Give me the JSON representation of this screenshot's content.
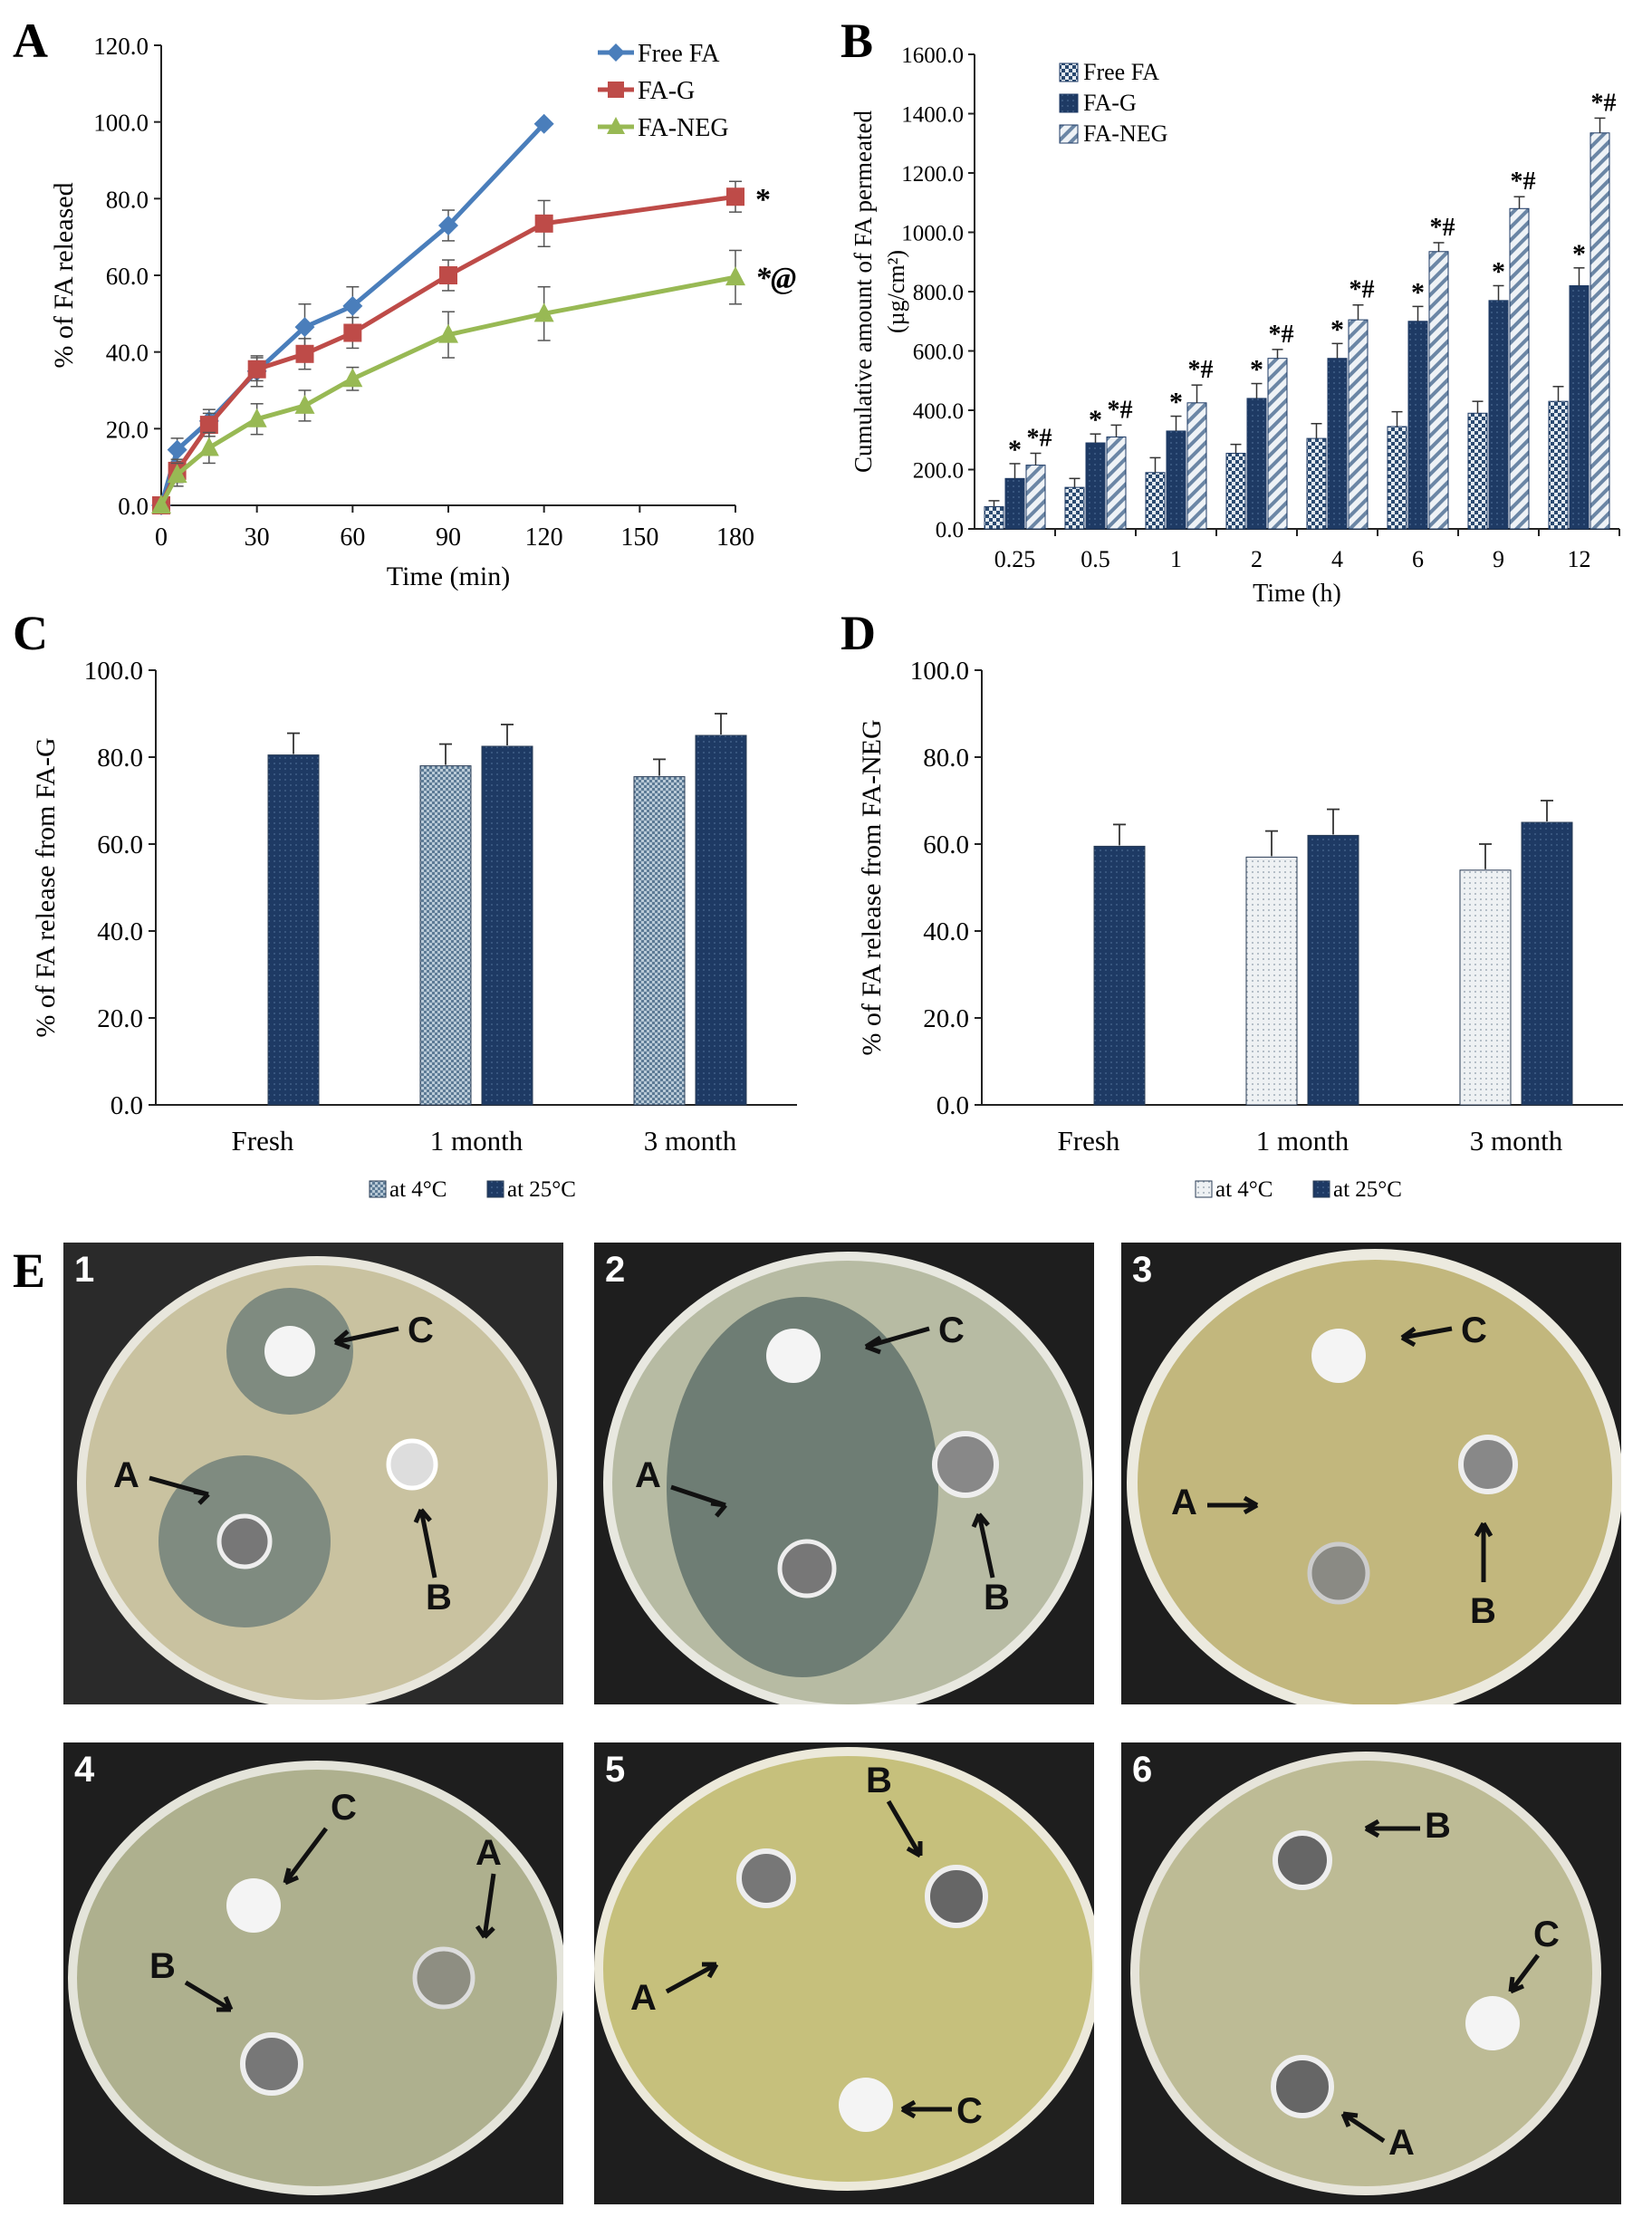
{
  "panels": {
    "A": "A",
    "B": "B",
    "C": "C",
    "D": "D",
    "E": "E"
  },
  "chart_data": [
    {
      "id": "A",
      "type": "line",
      "title": "",
      "xlabel": "Time (min)",
      "ylabel": "% of FA released",
      "xlim": [
        0,
        180
      ],
      "ylim": [
        0,
        120
      ],
      "xticks": [
        "0",
        "30",
        "60",
        "90",
        "120",
        "150",
        "180"
      ],
      "xtick_values": [
        0,
        30,
        60,
        90,
        120,
        150,
        180
      ],
      "yticks": [
        "0.0",
        "20.0",
        "40.0",
        "60.0",
        "80.0",
        "100.0",
        "120.0"
      ],
      "ytick_values": [
        0,
        20,
        40,
        60,
        80,
        100,
        120
      ],
      "legend": "top-right",
      "series": [
        {
          "name": "Free FA",
          "color": "#4a7ebb",
          "marker": "diamond",
          "x": [
            0,
            5,
            15,
            30,
            45,
            60,
            90,
            120
          ],
          "y": [
            0,
            14.5,
            22,
            35,
            46.5,
            52,
            73,
            99.5
          ],
          "err": [
            0,
            3,
            3,
            4,
            6,
            5,
            4,
            0
          ]
        },
        {
          "name": "FA-G",
          "color": "#be4b48",
          "marker": "square",
          "x": [
            0,
            5,
            15,
            30,
            45,
            60,
            90,
            120,
            180
          ],
          "y": [
            0,
            9,
            21,
            35.5,
            39.5,
            45,
            60,
            73.5,
            80.5
          ],
          "err": [
            0,
            3,
            3,
            3,
            4,
            4,
            4,
            6,
            4
          ]
        },
        {
          "name": "FA-NEG",
          "color": "#98b954",
          "marker": "triangle",
          "x": [
            0,
            5,
            15,
            30,
            45,
            60,
            90,
            120,
            180
          ],
          "y": [
            0,
            8,
            15,
            22.5,
            26,
            33,
            44.5,
            50,
            59.5
          ],
          "err": [
            0,
            3,
            4,
            4,
            4,
            3,
            6,
            7,
            7
          ]
        }
      ],
      "annotations": [
        "*",
        "*@"
      ]
    },
    {
      "id": "B",
      "type": "bar",
      "title": "",
      "xlabel": "Time (h)",
      "ylabel": "Cumulative amount of FA permeated",
      "ylabel_unit": "(µg/cm²)",
      "ylim": [
        0,
        1600
      ],
      "yticks": [
        "0.0",
        "200.0",
        "400.0",
        "600.0",
        "800.0",
        "1000.0",
        "1200.0",
        "1400.0",
        "1600.0"
      ],
      "ytick_values": [
        0,
        200,
        400,
        600,
        800,
        1000,
        1200,
        1400,
        1600
      ],
      "categories": [
        "0.25",
        "0.5",
        "1",
        "2",
        "4",
        "6",
        "9",
        "12"
      ],
      "legend": "top-left",
      "series": [
        {
          "name": "Free FA",
          "color": "#c8d3dd",
          "pattern": "check",
          "values": [
            75,
            140,
            190,
            255,
            305,
            345,
            390,
            430
          ],
          "err": [
            20,
            30,
            50,
            30,
            50,
            50,
            40,
            50
          ]
        },
        {
          "name": "FA-G",
          "color": "#1f3b63",
          "pattern": "solid",
          "values": [
            170,
            290,
            330,
            440,
            575,
            700,
            770,
            820
          ],
          "err": [
            50,
            30,
            50,
            50,
            50,
            50,
            50,
            60
          ]
        },
        {
          "name": "FA-NEG",
          "color": "#9fb3c8",
          "pattern": "diagonal",
          "values": [
            215,
            310,
            425,
            575,
            705,
            935,
            1080,
            1335
          ],
          "err": [
            40,
            40,
            60,
            30,
            50,
            30,
            40,
            50
          ]
        }
      ],
      "markers": {
        "fa_g": "*",
        "fa_neg": "*#"
      }
    },
    {
      "id": "C",
      "type": "bar",
      "title": "",
      "xlabel": "",
      "ylabel": "% of FA release from FA-G",
      "ylim": [
        0,
        100
      ],
      "yticks": [
        "0.0",
        "20.0",
        "40.0",
        "60.0",
        "80.0",
        "100.0"
      ],
      "ytick_values": [
        0,
        20,
        40,
        60,
        80,
        100
      ],
      "categories": [
        "Fresh",
        "1 month",
        "3 month"
      ],
      "legend": "bottom",
      "series": [
        {
          "name": "at 4°C",
          "color": "#a9bccb",
          "pattern": "check",
          "values": [
            null,
            78,
            75.5
          ],
          "err": [
            0,
            5,
            4
          ]
        },
        {
          "name": "at 25°C",
          "color": "#1e3a64",
          "pattern": "solid",
          "values": [
            80.5,
            82.5,
            85
          ],
          "err": [
            5,
            5,
            5
          ]
        }
      ]
    },
    {
      "id": "D",
      "type": "bar",
      "title": "",
      "xlabel": "",
      "ylabel": "% of FA release from FA-NEG",
      "ylim": [
        0,
        100
      ],
      "yticks": [
        "0.0",
        "20.0",
        "40.0",
        "60.0",
        "80.0",
        "100.0"
      ],
      "ytick_values": [
        0,
        20,
        40,
        60,
        80,
        100
      ],
      "categories": [
        "Fresh",
        "1 month",
        "3 month"
      ],
      "legend": "bottom",
      "series": [
        {
          "name": "at 4°C",
          "color": "#e3e8ec",
          "pattern": "dots",
          "values": [
            null,
            57,
            54
          ],
          "err": [
            0,
            6,
            6
          ]
        },
        {
          "name": "at 25°C",
          "color": "#1e3a64",
          "pattern": "solid",
          "values": [
            59.5,
            62,
            65
          ],
          "err": [
            5,
            6,
            5
          ]
        }
      ]
    }
  ],
  "photos": [
    {
      "num": "1",
      "labels": [
        "C",
        "A",
        "B"
      ]
    },
    {
      "num": "2",
      "labels": [
        "C",
        "A",
        "B"
      ]
    },
    {
      "num": "3",
      "labels": [
        "C",
        "A",
        "B"
      ]
    },
    {
      "num": "4",
      "labels": [
        "C",
        "A",
        "B"
      ]
    },
    {
      "num": "5",
      "labels": [
        "B",
        "A",
        "C"
      ]
    },
    {
      "num": "6",
      "labels": [
        "B",
        "C",
        "A"
      ]
    }
  ]
}
